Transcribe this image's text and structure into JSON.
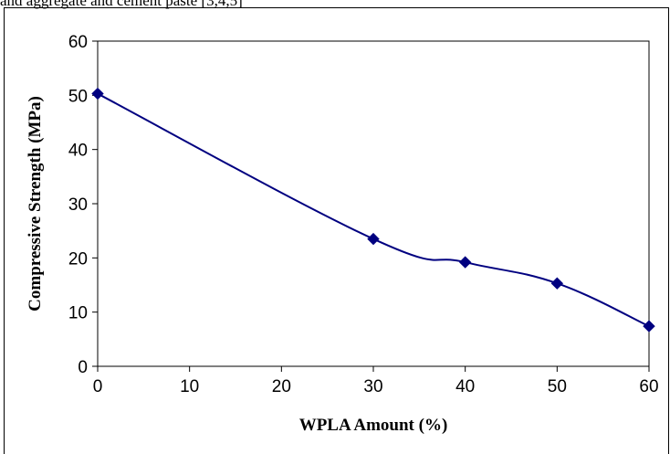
{
  "page": {
    "top_text": "and aggregate and cement paste [3,4,5]"
  },
  "chart_data": {
    "type": "line",
    "title": "",
    "xlabel": "WPLA Amount (%)",
    "ylabel": "Compressive Strength (MPa)",
    "xlim": [
      0,
      60
    ],
    "ylim": [
      0,
      60
    ],
    "x_ticks": [
      "0",
      "10",
      "20",
      "30",
      "40",
      "50",
      "60"
    ],
    "y_ticks": [
      "0",
      "10",
      "20",
      "30",
      "40",
      "50",
      "60"
    ],
    "grid": false,
    "legend": "none",
    "smooth": true,
    "marker": "diamond",
    "line_color": "#000080",
    "series": [
      {
        "x": [
          0,
          30,
          40,
          50,
          60
        ],
        "y": [
          50.3,
          23.5,
          19.2,
          15.3,
          7.4
        ]
      }
    ]
  }
}
